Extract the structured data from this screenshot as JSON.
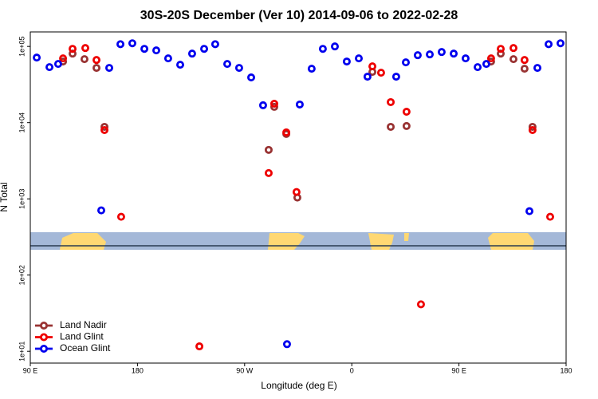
{
  "chart_data": {
    "type": "scatter",
    "title": "30S-20S December (Ver 10)   2014-09-06 to 2022-02-28",
    "x_label": "Longitude (deg E)",
    "y_label": "N Total",
    "log_y": true,
    "legend": "lower left",
    "xlim": [
      90,
      540
    ],
    "ylim": [
      7,
      155000
    ],
    "xticks": [
      {
        "value": 90,
        "label": "90 E"
      },
      180,
      {
        "value": 270,
        "label": "90 W"
      },
      {
        "value": 360,
        "label": "0"
      },
      {
        "value": 450,
        "label": "90 E"
      },
      {
        "value": 540,
        "label": "180"
      }
    ],
    "yticks": [
      {
        "value": 10,
        "label": "1e+01"
      },
      {
        "value": 100,
        "label": "1e+02"
      },
      {
        "value": 1000,
        "label": "1e+03"
      },
      {
        "value": 10000,
        "label": "1e+04"
      },
      {
        "value": 100000,
        "label": "1e+05"
      }
    ],
    "series": [
      {
        "name": "Land Nadir",
        "color": "#993333",
        "x": [
          117.5,
          125.5,
          135.5,
          145.6,
          152.3,
          290.2,
          294.9,
          305.0,
          314.3,
          377.3,
          392.7,
          406.0,
          477.0,
          485.1,
          495.8,
          505.1,
          511.8
        ],
        "values": [
          63400,
          80500,
          68100,
          52300,
          8810,
          4390,
          16100,
          7100,
          1040,
          46300,
          8810,
          9030,
          63400,
          80500,
          68100,
          51000,
          8810
        ]
      },
      {
        "name": "Land Glint",
        "color": "#ee0000",
        "x": [
          117.5,
          125.5,
          136.2,
          145.6,
          152.3,
          166.3,
          232.0,
          290.2,
          294.9,
          305.0,
          313.6,
          377.3,
          384.6,
          392.7,
          406.0,
          418.1,
          477.0,
          485.1,
          495.8,
          505.1,
          511.8,
          526.6
        ],
        "values": [
          69700,
          93000,
          95300,
          66400,
          8000,
          582,
          11.6,
          2180,
          17700,
          7450,
          1230,
          54800,
          45200,
          18600,
          13900,
          41.3,
          69700,
          93000,
          95300,
          66400,
          8000,
          582
        ]
      },
      {
        "name": "Ocean Glint",
        "color": "#0000ee",
        "x": [
          95.4,
          106.1,
          113.4,
          149.6,
          156.3,
          165.7,
          175.7,
          185.8,
          195.8,
          205.8,
          215.9,
          225.9,
          236.0,
          245.3,
          255.4,
          265.4,
          275.5,
          285.5,
          305.6,
          316.3,
          326.3,
          335.7,
          345.8,
          355.8,
          365.9,
          373.2,
          397.3,
          405.4,
          415.4,
          425.5,
          435.5,
          445.6,
          455.6,
          465.7,
          473.0,
          509.2,
          515.9,
          525.3,
          535.3
        ],
        "values": [
          71400,
          53500,
          58900,
          706,
          52300,
          107000,
          110000,
          93000,
          88700,
          69700,
          57500,
          80500,
          93000,
          107000,
          58900,
          52300,
          39200,
          16900,
          12.4,
          17300,
          51000,
          93000,
          100000,
          63400,
          69700,
          40100,
          40100,
          61800,
          76700,
          78600,
          84500,
          80500,
          69700,
          53500,
          58900,
          689,
          52300,
          107000,
          110000
        ]
      }
    ]
  }
}
